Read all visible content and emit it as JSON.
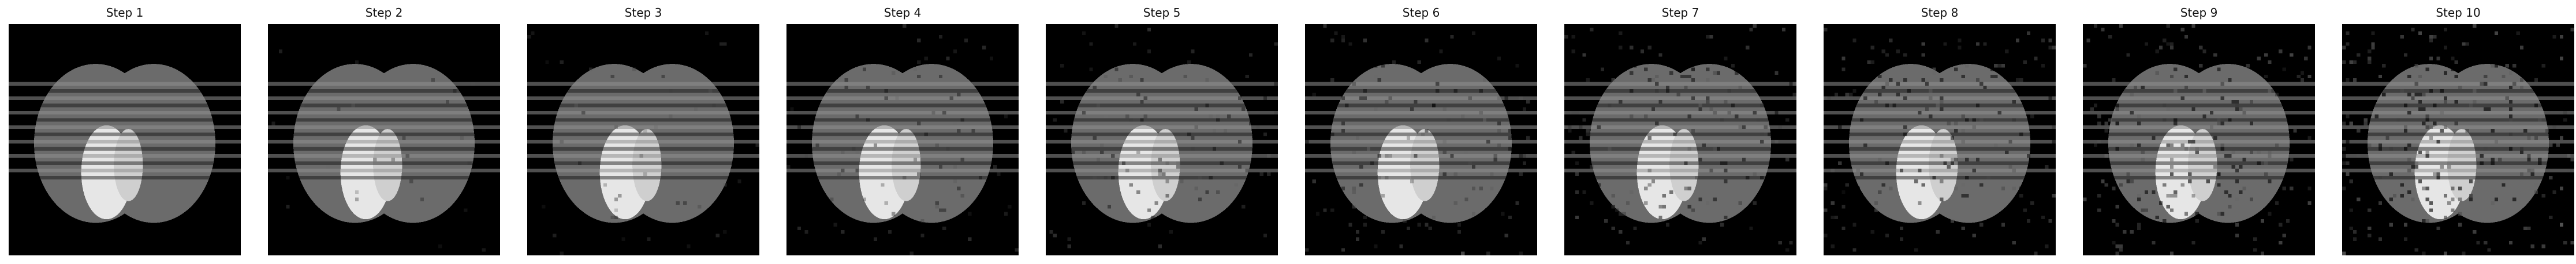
{
  "figure": {
    "panels": [
      {
        "title": "Step 1",
        "noise_level": 0.0
      },
      {
        "title": "Step 2",
        "noise_level": 0.01
      },
      {
        "title": "Step 3",
        "noise_level": 0.02
      },
      {
        "title": "Step 4",
        "noise_level": 0.03
      },
      {
        "title": "Step 5",
        "noise_level": 0.04
      },
      {
        "title": "Step 6",
        "noise_level": 0.05
      },
      {
        "title": "Step 7",
        "noise_level": 0.06
      },
      {
        "title": "Step 8",
        "noise_level": 0.07
      },
      {
        "title": "Step 9",
        "noise_level": 0.08
      },
      {
        "title": "Step 10",
        "noise_level": 0.09
      }
    ],
    "colors": {
      "background": "#000000",
      "left_ellipse": "#6b6b6b",
      "right_ellipse": "#6b6b6b",
      "bright_region": "#e6e6e6",
      "stripe_light": "#8f8f8f",
      "stripe_dark": "#0d0d0d"
    }
  }
}
